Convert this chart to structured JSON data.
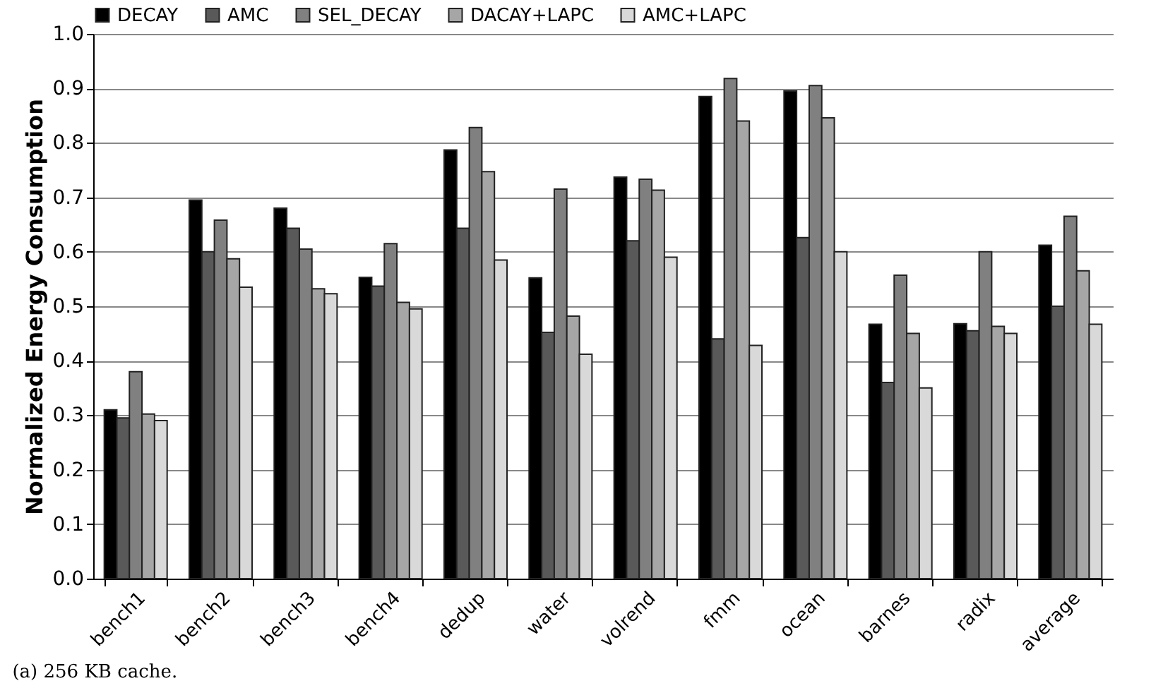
{
  "chart_data": {
    "type": "bar",
    "categories": [
      "bench1",
      "bench2",
      "bench3",
      "bench4",
      "dedup",
      "water",
      "volrend",
      "fmm",
      "ocean",
      "barnes",
      "radix",
      "average"
    ],
    "series": [
      {
        "name": "DECAY",
        "color": "#000000",
        "values": [
          0.31,
          0.695,
          0.68,
          0.553,
          0.787,
          0.552,
          0.737,
          0.885,
          0.895,
          0.467,
          0.468,
          0.612
        ]
      },
      {
        "name": "AMC",
        "color": "#595959",
        "values": [
          0.295,
          0.6,
          0.643,
          0.537,
          0.643,
          0.452,
          0.62,
          0.44,
          0.626,
          0.36,
          0.455,
          0.5
        ]
      },
      {
        "name": "SEL_DECAY",
        "color": "#808080",
        "values": [
          0.38,
          0.658,
          0.605,
          0.615,
          0.828,
          0.715,
          0.733,
          0.918,
          0.905,
          0.557,
          0.6,
          0.665
        ]
      },
      {
        "name": "DACAY+LAPC",
        "color": "#a6a6a6",
        "values": [
          0.302,
          0.587,
          0.532,
          0.507,
          0.747,
          0.482,
          0.713,
          0.84,
          0.846,
          0.45,
          0.463,
          0.565
        ]
      },
      {
        "name": "AMC+LAPC",
        "color": "#d9d9d9",
        "values": [
          0.29,
          0.535,
          0.523,
          0.495,
          0.585,
          0.412,
          0.59,
          0.428,
          0.6,
          0.35,
          0.45,
          0.467
        ]
      }
    ],
    "ylabel": "Normalized Energy Consumption",
    "ylim": [
      0,
      1
    ],
    "yticks": [
      {
        "value": 0,
        "label": "0.0"
      },
      {
        "value": 0.1,
        "label": "0.1"
      },
      {
        "value": 0.2,
        "label": "0.2"
      },
      {
        "value": 0.3,
        "label": "0.3"
      },
      {
        "value": 0.4,
        "label": "0.4"
      },
      {
        "value": 0.5,
        "label": "0.5"
      },
      {
        "value": 0.6,
        "label": "0.6"
      },
      {
        "value": 0.7,
        "label": "0.7"
      },
      {
        "value": 0.8,
        "label": "0.8"
      },
      {
        "value": 0.9,
        "label": "0.9"
      },
      {
        "value": 1,
        "label": "1.0"
      }
    ],
    "grid": "y",
    "legend": "top",
    "annotations": [
      "(a) 256 KB cache."
    ]
  }
}
